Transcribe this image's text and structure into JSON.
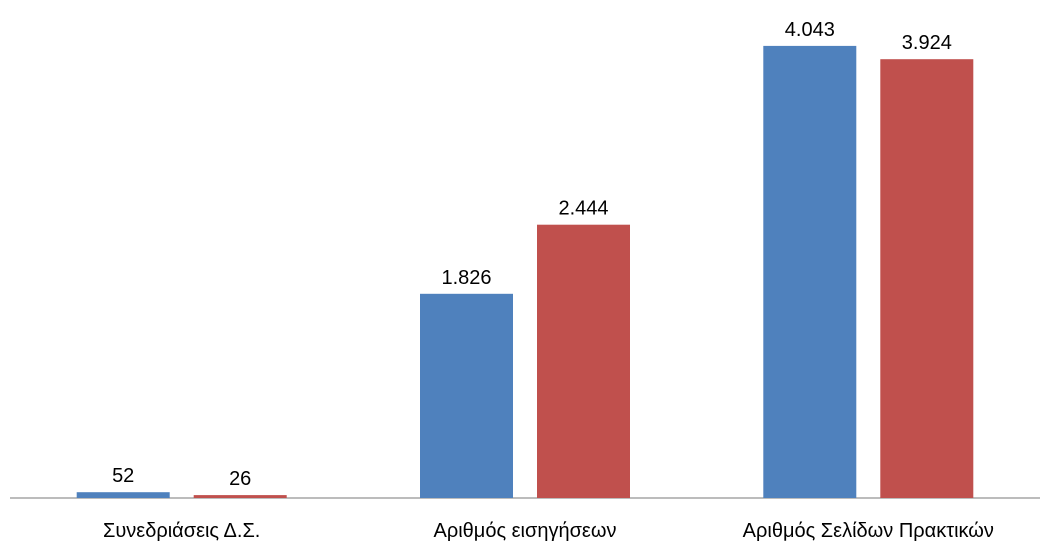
{
  "chart_data": {
    "type": "bar",
    "categories": [
      "Συνεδριάσεις Δ.Σ.",
      "Αριθμός εισηγήσεων",
      "Αριθμός Σελίδων Πρακτικών"
    ],
    "series": [
      {
        "values": [
          52,
          1826,
          4043
        ],
        "labels": [
          "52",
          "1.826",
          "4.043"
        ],
        "color": "#4F81BD"
      },
      {
        "values": [
          26,
          2444,
          3924
        ],
        "labels": [
          "26",
          "2.444",
          "3.924"
        ],
        "color": "#C0504D"
      }
    ],
    "title": "",
    "xlabel": "",
    "ylabel": "",
    "ylim": [
      0,
      4400
    ],
    "grid": false,
    "legend": "none",
    "axis_color": "#A6A6A6"
  }
}
